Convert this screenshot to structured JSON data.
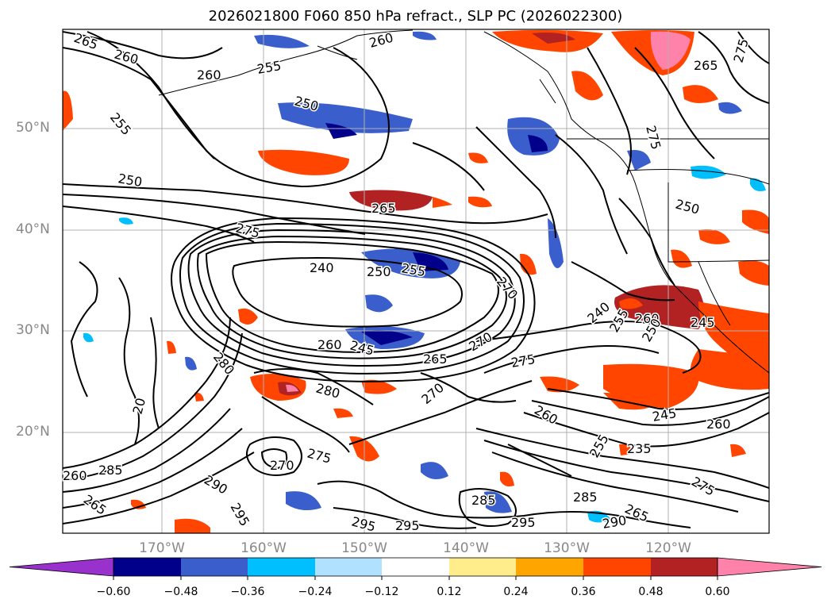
{
  "title": "2026021800 F060 850 hPa refract., SLP PC (2026022300)",
  "lat_labels": [
    "50°N",
    "40°N",
    "30°N",
    "20°N"
  ],
  "lon_labels": [
    "170°W",
    "160°W",
    "150°W",
    "140°W",
    "130°W",
    "120°W"
  ],
  "contour_labels": [
    "265",
    "260",
    "255",
    "255",
    "250",
    "250",
    "260",
    "265",
    "275",
    "240",
    "250",
    "255",
    "270",
    "260",
    "245",
    "265",
    "270",
    "275",
    "280",
    "270",
    "280",
    "275",
    "270",
    "290",
    "295",
    "295",
    "295",
    "285",
    "285",
    "295",
    "290",
    "265",
    "260",
    "285",
    "265",
    "260",
    "260",
    "265",
    "250",
    "255",
    "260",
    "245",
    "250",
    "240",
    "245",
    "235",
    "255",
    "260",
    "275",
    "275",
    "275",
    "20"
  ],
  "colorbar": {
    "ticks": [
      "−0.60",
      "−0.48",
      "−0.36",
      "−0.24",
      "−0.12",
      "0.12",
      "0.24",
      "0.36",
      "0.48",
      "0.60"
    ],
    "colors": [
      "#9932cc",
      "#00008b",
      "#3a5fcd",
      "#00bfff",
      "#b0e2ff",
      "#ffffff",
      "#ffec8b",
      "#ffa500",
      "#ff4500",
      "#b22222",
      "#ff82ab"
    ]
  }
}
